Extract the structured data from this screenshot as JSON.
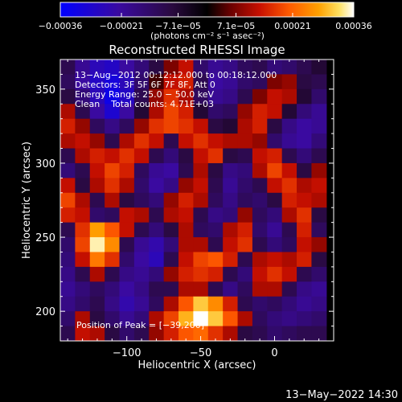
{
  "chart_data": {
    "type": "heatmap",
    "title": "Reconstructed RHESSI Image",
    "xlabel": "Heliocentric X (arcsec)",
    "ylabel": "Heliocentric Y (arcsec)",
    "xlim": [
      -145,
      40
    ],
    "ylim": [
      180,
      370
    ],
    "xticks": [
      -100,
      -50,
      0
    ],
    "xtick_labels": [
      "−100",
      "−50",
      "0"
    ],
    "yticks": [
      200,
      250,
      300,
      350
    ],
    "ytick_labels": [
      "200",
      "250",
      "300",
      "350"
    ],
    "colorbar": {
      "range": [
        -0.00036,
        0.00036
      ],
      "ticks": [
        -0.00036,
        -0.00021,
        -7.1e-05,
        7.1e-05,
        0.00021,
        0.00036
      ],
      "tick_labels": [
        "−0.00036",
        "−0.00021",
        "−7.1e−05",
        "7.1e−05",
        "0.00021",
        "0.00036"
      ],
      "unit_label": "(photons cm⁻² s⁻¹ asec⁻²)",
      "colors": [
        "#0000ff",
        "#3a0aa0",
        "#2a0a40",
        "#000000",
        "#6a0000",
        "#c81000",
        "#ff5a00",
        "#ffa000",
        "#ffe060",
        "#ffffff"
      ]
    },
    "annotations": [
      "13−Aug−2012 00:12:12.000 to 00:18:12.000",
      "Detectors: 3F 5F 6F 7F 8F, Att 0",
      "Energy Range: 25.0 − 50.0 keV",
      "Clean    Total counts: 4.71E+03",
      "Position of Peak = [−39,200]"
    ],
    "footer": "13−May−2022 14:30",
    "grid_x": [
      -140,
      -130,
      -120,
      -110,
      -100,
      -90,
      -80,
      -70,
      -60,
      -50,
      -40,
      -30,
      -20,
      -10,
      0,
      10,
      20,
      30
    ],
    "grid_y": [
      365,
      355,
      345,
      335,
      325,
      315,
      305,
      295,
      285,
      275,
      265,
      255,
      245,
      235,
      225,
      215,
      205,
      195,
      185
    ],
    "values": [
      [
        -0.3,
        -0.55,
        -0.7,
        -0.75,
        -0.6,
        -0.45,
        -0.25,
        0.2,
        0.35,
        -0.4,
        -0.55,
        -0.5,
        -0.35,
        -0.3,
        -0.45,
        -0.4,
        -0.3,
        -0.2
      ],
      [
        -0.35,
        -0.6,
        -0.75,
        -0.85,
        -0.7,
        -0.4,
        0.1,
        0.35,
        0.4,
        -0.3,
        -0.6,
        -0.55,
        -0.4,
        -0.35,
        0.2,
        0.25,
        -0.25,
        -0.3
      ],
      [
        -0.25,
        -0.45,
        -0.7,
        -0.9,
        -0.75,
        -0.3,
        0.25,
        0.45,
        0.3,
        -0.35,
        -0.55,
        -0.5,
        -0.3,
        0.2,
        0.35,
        0.3,
        -0.2,
        -0.4
      ],
      [
        0.3,
        -0.3,
        -0.6,
        -0.8,
        -0.6,
        -0.2,
        0.3,
        0.5,
        0.4,
        -0.2,
        -0.4,
        -0.35,
        0.25,
        0.4,
        0.35,
        -0.2,
        -0.45,
        -0.55
      ],
      [
        0.4,
        0.25,
        -0.35,
        -0.5,
        -0.35,
        0.25,
        0.45,
        0.5,
        0.45,
        0.35,
        -0.25,
        -0.2,
        0.3,
        0.4,
        -0.25,
        -0.5,
        -0.6,
        -0.55
      ],
      [
        0.3,
        0.35,
        0.25,
        -0.3,
        0.3,
        0.45,
        0.35,
        -0.3,
        0.35,
        0.45,
        0.35,
        0.3,
        0.3,
        0.25,
        -0.4,
        -0.55,
        -0.6,
        -0.45
      ],
      [
        -0.3,
        0.3,
        0.4,
        0.35,
        0.45,
        0.35,
        -0.3,
        -0.45,
        -0.25,
        0.35,
        0.45,
        -0.25,
        -0.3,
        0.35,
        0.4,
        -0.3,
        -0.45,
        -0.3
      ],
      [
        -0.45,
        -0.3,
        0.35,
        0.5,
        0.4,
        -0.35,
        -0.55,
        -0.6,
        -0.3,
        0.3,
        -0.25,
        -0.5,
        -0.45,
        0.3,
        0.5,
        0.35,
        -0.25,
        0.25
      ],
      [
        0.35,
        -0.25,
        0.3,
        0.45,
        0.3,
        -0.4,
        -0.6,
        -0.5,
        0.25,
        0.35,
        -0.3,
        -0.55,
        -0.4,
        -0.3,
        0.35,
        0.45,
        0.3,
        0.35
      ],
      [
        0.5,
        0.3,
        -0.3,
        0.3,
        -0.25,
        -0.35,
        -0.45,
        0.25,
        0.4,
        0.3,
        -0.35,
        -0.5,
        -0.35,
        -0.4,
        -0.25,
        0.4,
        0.35,
        0.3
      ],
      [
        0.4,
        0.35,
        -0.4,
        -0.35,
        0.35,
        0.3,
        -0.3,
        0.3,
        0.35,
        -0.3,
        -0.5,
        -0.45,
        0.25,
        -0.35,
        -0.45,
        0.3,
        0.45,
        -0.25
      ],
      [
        -0.3,
        0.45,
        0.75,
        0.55,
        0.35,
        -0.3,
        -0.45,
        -0.25,
        0.3,
        -0.35,
        -0.4,
        0.3,
        0.4,
        -0.4,
        -0.55,
        -0.3,
        0.4,
        -0.35
      ],
      [
        -0.4,
        0.5,
        0.95,
        0.7,
        -0.3,
        -0.55,
        -0.65,
        -0.45,
        0.3,
        0.3,
        -0.3,
        0.35,
        0.45,
        -0.3,
        -0.45,
        -0.35,
        0.35,
        0.25
      ],
      [
        -0.45,
        0.35,
        0.65,
        0.45,
        -0.4,
        -0.6,
        -0.7,
        -0.3,
        0.35,
        0.5,
        0.55,
        0.4,
        -0.3,
        0.3,
        0.35,
        0.3,
        0.4,
        -0.25
      ],
      [
        -0.5,
        -0.3,
        0.3,
        -0.3,
        -0.5,
        -0.55,
        -0.45,
        0.25,
        0.4,
        0.45,
        0.4,
        -0.3,
        -0.45,
        0.35,
        0.45,
        0.35,
        -0.3,
        -0.4
      ],
      [
        -0.55,
        -0.45,
        -0.35,
        -0.45,
        -0.6,
        -0.5,
        -0.3,
        -0.3,
        0.3,
        0.3,
        -0.3,
        -0.5,
        -0.35,
        0.3,
        0.3,
        -0.3,
        -0.5,
        -0.55
      ],
      [
        -0.5,
        -0.4,
        -0.3,
        -0.5,
        -0.65,
        -0.55,
        -0.35,
        0.3,
        0.55,
        0.85,
        0.7,
        0.4,
        -0.3,
        -0.4,
        -0.35,
        -0.45,
        -0.55,
        -0.5
      ],
      [
        -0.4,
        0.3,
        -0.25,
        -0.4,
        -0.55,
        -0.45,
        0.3,
        0.5,
        0.8,
        1.0,
        0.85,
        0.55,
        0.3,
        -0.35,
        -0.45,
        -0.5,
        -0.45,
        -0.4
      ],
      [
        -0.3,
        0.35,
        0.3,
        -0.25,
        -0.4,
        -0.3,
        0.25,
        0.4,
        0.55,
        0.6,
        0.45,
        0.3,
        -0.25,
        -0.3,
        -0.4,
        -0.35,
        -0.3,
        -0.3
      ]
    ]
  }
}
